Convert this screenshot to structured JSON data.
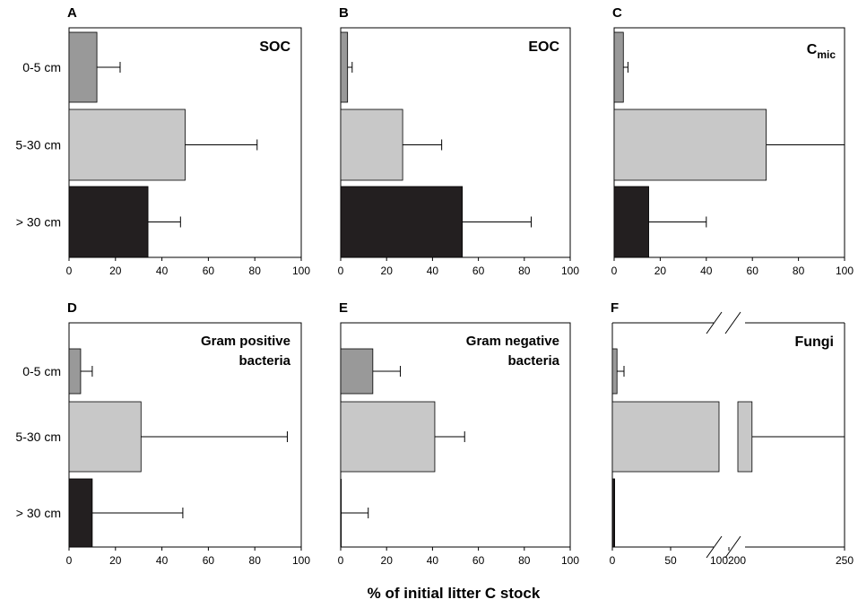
{
  "figure": {
    "xlabel": "% of initial litter C stock"
  },
  "chart_data": [
    {
      "panel": "A",
      "type": "bar",
      "orientation": "horizontal",
      "title": "SOC",
      "categories": [
        "0-5 cm",
        "5-30 cm",
        "> 30 cm"
      ],
      "values": [
        12,
        50,
        34
      ],
      "errors": [
        10,
        31,
        14
      ],
      "colors": [
        "#999999",
        "#c8c8c8",
        "#231f20"
      ],
      "xlim": [
        0,
        100
      ],
      "xticks": [
        0,
        20,
        40,
        60,
        80,
        100
      ]
    },
    {
      "panel": "B",
      "type": "bar",
      "orientation": "horizontal",
      "title": "EOC",
      "categories": [
        "0-5 cm",
        "5-30 cm",
        "> 30 cm"
      ],
      "values": [
        3,
        27,
        53
      ],
      "errors": [
        2,
        17,
        30
      ],
      "colors": [
        "#999999",
        "#c8c8c8",
        "#231f20"
      ],
      "xlim": [
        0,
        100
      ],
      "xticks": [
        0,
        20,
        40,
        60,
        80,
        100
      ]
    },
    {
      "panel": "C",
      "type": "bar",
      "orientation": "horizontal",
      "title": "C",
      "title_sub": "mic",
      "categories": [
        "0-5 cm",
        "5-30 cm",
        "> 30 cm"
      ],
      "values": [
        4,
        66,
        15
      ],
      "errors": [
        2,
        34,
        25
      ],
      "colors": [
        "#999999",
        "#c8c8c8",
        "#231f20"
      ],
      "xlim": [
        0,
        100
      ],
      "xticks": [
        0,
        20,
        40,
        60,
        80,
        100
      ]
    },
    {
      "panel": "D",
      "type": "bar",
      "orientation": "horizontal",
      "title_lines": [
        "Gram positive",
        "bacteria"
      ],
      "categories": [
        "0-5 cm",
        "5-30 cm",
        "> 30 cm"
      ],
      "values": [
        5,
        31,
        10
      ],
      "errors": [
        5,
        63,
        39
      ],
      "colors": [
        "#999999",
        "#c8c8c8",
        "#231f20"
      ],
      "xlim": [
        0,
        100
      ],
      "xticks": [
        0,
        20,
        40,
        60,
        80,
        100
      ]
    },
    {
      "panel": "E",
      "type": "bar",
      "orientation": "horizontal",
      "title_lines": [
        "Gram negative",
        "bacteria"
      ],
      "categories": [
        "0-5 cm",
        "5-30 cm",
        "> 30 cm"
      ],
      "values": [
        14,
        41,
        0
      ],
      "errors": [
        12,
        13,
        12
      ],
      "colors": [
        "#999999",
        "#c8c8c8",
        "#231f20"
      ],
      "xlim": [
        0,
        100
      ],
      "xticks": [
        0,
        20,
        40,
        60,
        80,
        100
      ]
    },
    {
      "panel": "F",
      "type": "bar",
      "orientation": "horizontal",
      "title": "Fungi",
      "categories": [
        "0-5 cm",
        "5-30 cm",
        "> 30 cm"
      ],
      "values": [
        4,
        210,
        2
      ],
      "errors": [
        6,
        40,
        0
      ],
      "colors": [
        "#999999",
        "#c8c8c8",
        "#231f20"
      ],
      "axis_break": [
        100,
        200
      ],
      "xticks": [
        0,
        50,
        100,
        200,
        250
      ],
      "xtick_labels": [
        "0",
        "50",
        "100",
        "200",
        "250"
      ]
    }
  ]
}
